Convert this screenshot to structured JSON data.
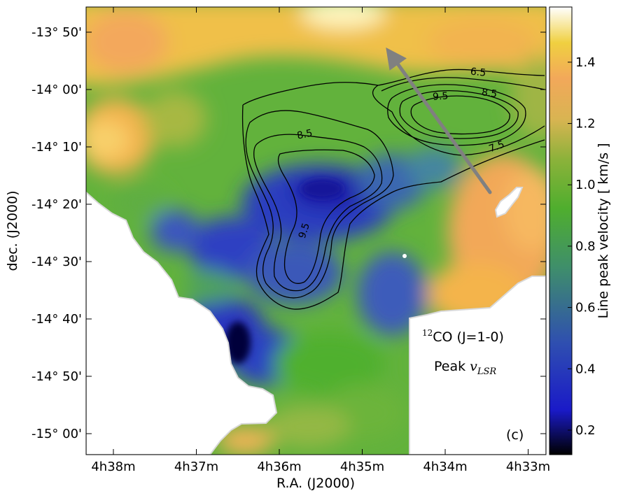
{
  "chart_data": {
    "type": "heatmap",
    "title": "",
    "xlabel": "R.A. (J2000)",
    "ylabel": "dec. (J2000)",
    "x_ticks": [
      "4h38m",
      "4h37m",
      "4h36m",
      "4h35m",
      "4h34m",
      "4h33m"
    ],
    "y_ticks": [
      "-13° 50'",
      "-14° 00'",
      "-14° 10'",
      "-14° 20'",
      "-14° 30'",
      "-14° 40'",
      "-14° 50'",
      "-15° 00'"
    ],
    "colorbar": {
      "label": "Line peak velocity [ km/s ]",
      "ticks": [
        "0.2",
        "0.4",
        "0.6",
        "0.8",
        "1.0",
        "1.2",
        "1.4"
      ],
      "range": [
        0.12,
        1.58
      ]
    },
    "contour_labels": [
      "6.5",
      "8.5",
      "9.5",
      "7.5",
      "8.5",
      "9.5"
    ],
    "annotations": {
      "line": "CO (J=1-0)",
      "isotope": "12",
      "quantity_prefix": "Peak ",
      "quantity_symbol": "v",
      "quantity_subscript": "LSR",
      "panel": "(c)"
    },
    "colors": {
      "low": "#000000",
      "blue": "#1a1ac8",
      "green": "#4fae2e",
      "yellow": "#f0c24a",
      "orange": "#f2a85a",
      "high": "#ffffff",
      "arrow": "#808080"
    }
  }
}
